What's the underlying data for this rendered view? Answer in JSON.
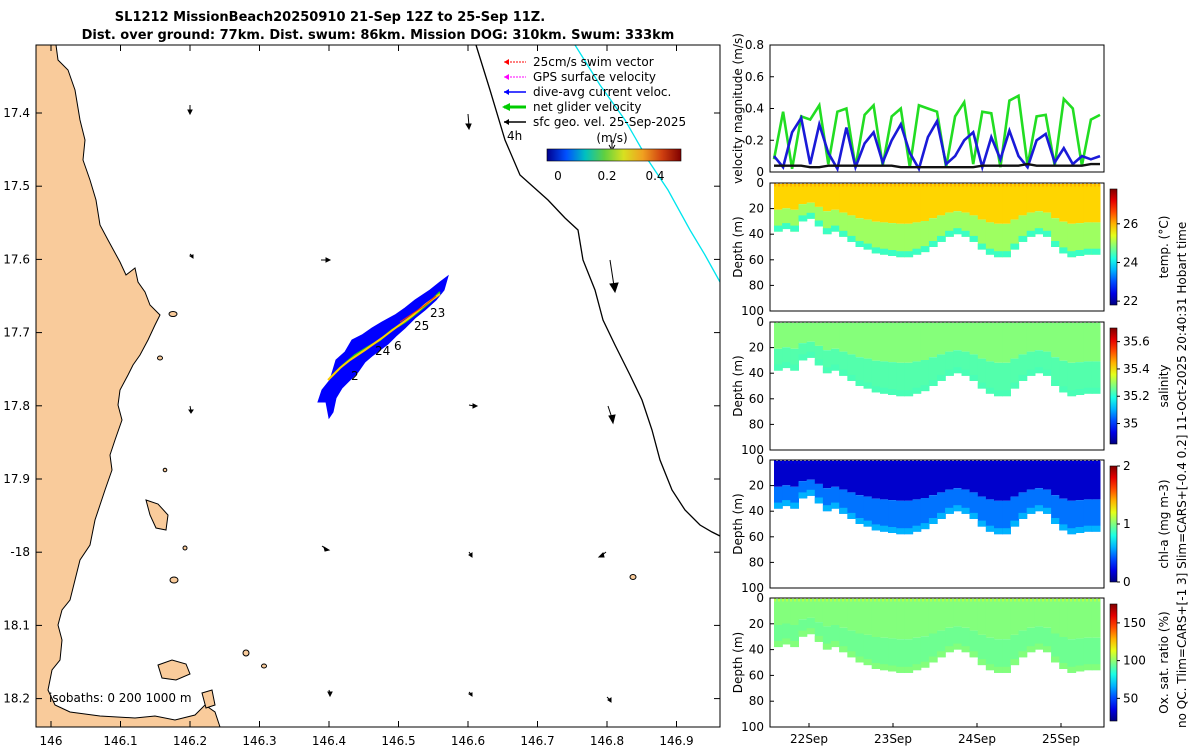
{
  "title": {
    "line1": "SL1212 MissionBeach20250910 21-Sep 12Z to 25-Sep 11Z.",
    "line2": "Dist. over ground: 77km. Dist. swum: 86km. Mission DOG: 310km. Swum: 333km"
  },
  "side_note": "no QC. Tlim=CARS+[-1 3] Slim=CARS+[-0.4 0.2] 11-Oct-2025 20:40:31 Hobart time",
  "colors": {
    "land": "#f9cb9b",
    "swim_vector": "#ff0000",
    "gps_velocity": "#ff00ff",
    "current": "#0000ff",
    "net_velocity": "#00cc00",
    "geostrophic": "#000000",
    "contour_cyan": "#00e5ee"
  },
  "map": {
    "lon_ticks": [
      "146",
      "146.1",
      "146.2",
      "146.3",
      "146.4",
      "146.5",
      "146.6",
      "146.7",
      "146.8",
      "146.9"
    ],
    "lat_ticks": [
      "17.4",
      "17.5",
      "17.6",
      "17.7",
      "17.8",
      "17.9",
      "-18",
      "18.1",
      "18.2"
    ],
    "legend": [
      {
        "label": "25cm/s swim vector",
        "color": "#ff0000"
      },
      {
        "label": "GPS surface velocity",
        "color": "#ff00ff"
      },
      {
        "label": "dive-avg current veloc.",
        "color": "#0000ff"
      },
      {
        "label": "net glider velocity",
        "color": "#00cc00"
      },
      {
        "label": "sfc geo. vel. 25-Sep-2025",
        "color": "#000000"
      }
    ],
    "colorbar_unit": "(m/s)",
    "colorbar_ticks": [
      "0",
      "0.2",
      "0.4"
    ],
    "arrow_interval": "4h",
    "track_day_labels": [
      "23",
      "25",
      "6",
      "24",
      "2"
    ],
    "isobaths_label": "isobaths: 0   200  1000 m"
  },
  "chart_data": [
    {
      "type": "line",
      "ylabel": "velocity magnitude (m/s)",
      "ylim": [
        0,
        0.8
      ],
      "yticks": [
        "0",
        "0.2",
        "0.4",
        "0.6",
        "0.8"
      ],
      "series": [
        {
          "name": "net glider velocity",
          "color": "#22dd22",
          "values": [
            0.08,
            0.38,
            0.02,
            0.35,
            0.33,
            0.42,
            0.05,
            0.38,
            0.4,
            0.03,
            0.36,
            0.42,
            0.04,
            0.35,
            0.4,
            0.03,
            0.42,
            0.4,
            0.38,
            0.03,
            0.35,
            0.44,
            0.05,
            0.38,
            0.37,
            0.03,
            0.45,
            0.48,
            0.04,
            0.35,
            0.36,
            0.04,
            0.46,
            0.4,
            0.04,
            0.33,
            0.36
          ]
        },
        {
          "name": "dive-avg current",
          "color": "#1a1ad8",
          "values": [
            0.1,
            0.03,
            0.25,
            0.34,
            0.05,
            0.3,
            0.12,
            0.02,
            0.28,
            0.03,
            0.18,
            0.25,
            0.06,
            0.2,
            0.3,
            0.12,
            0.02,
            0.22,
            0.32,
            0.05,
            0.1,
            0.2,
            0.25,
            0.03,
            0.22,
            0.08,
            0.26,
            0.1,
            0.03,
            0.2,
            0.24,
            0.06,
            0.15,
            0.05,
            0.1,
            0.08,
            0.1
          ]
        },
        {
          "name": "sfc geo. vel.",
          "color": "#111111",
          "values": [
            0.04,
            0.04,
            0.04,
            0.04,
            0.03,
            0.03,
            0.04,
            0.04,
            0.04,
            0.04,
            0.04,
            0.04,
            0.04,
            0.04,
            0.03,
            0.03,
            0.03,
            0.03,
            0.03,
            0.03,
            0.03,
            0.03,
            0.03,
            0.04,
            0.04,
            0.04,
            0.04,
            0.04,
            0.05,
            0.04,
            0.04,
            0.04,
            0.04,
            0.04,
            0.04,
            0.05,
            0.05
          ]
        }
      ]
    },
    {
      "type": "heatmap",
      "ylabel": "Depth (m)",
      "ylim": [
        0,
        100
      ],
      "yticks": [
        "0",
        "20",
        "40",
        "60",
        "80",
        "100"
      ],
      "colorbar_label": "temp. (°C)",
      "colorbar_ticks": [
        "22",
        "24",
        "26"
      ],
      "clim": [
        21.8,
        27.8
      ],
      "surface_value": 25.8,
      "deep_value": 24.4
    },
    {
      "type": "heatmap",
      "ylabel": "Depth (m)",
      "ylim": [
        0,
        100
      ],
      "yticks": [
        "0",
        "20",
        "40",
        "60",
        "80",
        "100"
      ],
      "colorbar_label": "salinity",
      "colorbar_ticks": [
        "35",
        "35.2",
        "35.4",
        "35.6"
      ],
      "clim": [
        34.85,
        35.7
      ],
      "surface_value": 35.28,
      "deep_value": 35.23
    },
    {
      "type": "heatmap",
      "ylabel": "Depth (m)",
      "ylim": [
        0,
        100
      ],
      "yticks": [
        "0",
        "20",
        "40",
        "60",
        "80",
        "100"
      ],
      "colorbar_label": "chl-a (mg m-3)",
      "colorbar_ticks": [
        "0",
        "1",
        "2"
      ],
      "clim": [
        0,
        2
      ],
      "surface_value": 0.15,
      "deep_value": 0.6
    },
    {
      "type": "heatmap",
      "ylabel": "Depth (m)",
      "ylim": [
        0,
        100
      ],
      "yticks": [
        "0",
        "20",
        "40",
        "60",
        "80",
        "100"
      ],
      "colorbar_label": "Ox. sat. ratio (%)",
      "colorbar_ticks": [
        "50",
        "100",
        "150"
      ],
      "clim": [
        20,
        175
      ],
      "surface_value": 98,
      "deep_value": 98,
      "x_ticks": [
        "22Sep",
        "23Sep",
        "24Sep",
        "25Sep"
      ]
    }
  ],
  "profile_bottom_depth": [
    38,
    36,
    38,
    30,
    28,
    34,
    40,
    38,
    42,
    46,
    50,
    52,
    55,
    56,
    57,
    58,
    58,
    56,
    54,
    50,
    46,
    42,
    40,
    42,
    46,
    52,
    56,
    58,
    58,
    52,
    46,
    42,
    40,
    42,
    50,
    55,
    58,
    57,
    56,
    56
  ]
}
